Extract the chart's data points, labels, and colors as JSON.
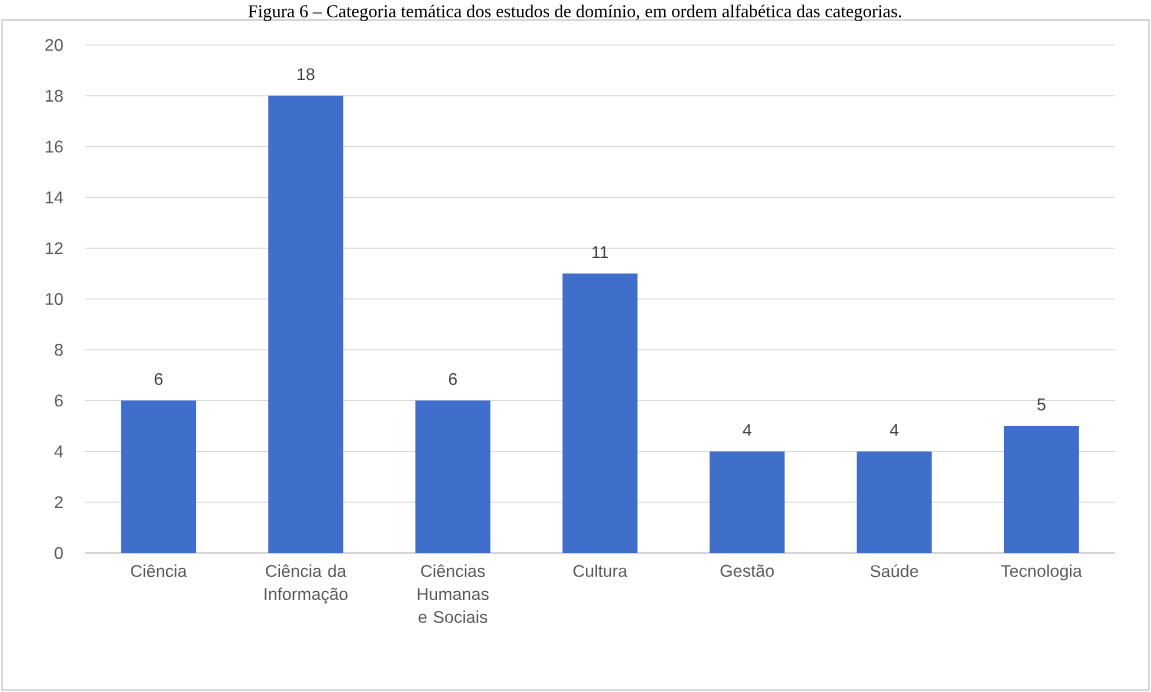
{
  "chart_data": {
    "type": "bar",
    "title": "Figura 6 – Categoria temática dos estudos de domínio, em ordem alfabética das categorias.",
    "categories": [
      "Ciência",
      "Ciência da Informação",
      "Ciências Humanas e Sociais",
      "Cultura",
      "Gestão",
      "Saúde",
      "Tecnologia"
    ],
    "values": [
      6,
      18,
      6,
      11,
      4,
      4,
      5
    ],
    "color": "#3f6fcb",
    "ylim": [
      0,
      20
    ],
    "yticks": [
      0,
      2,
      4,
      6,
      8,
      10,
      12,
      14,
      16,
      18,
      20
    ],
    "grid": "y",
    "data_labels": true
  }
}
